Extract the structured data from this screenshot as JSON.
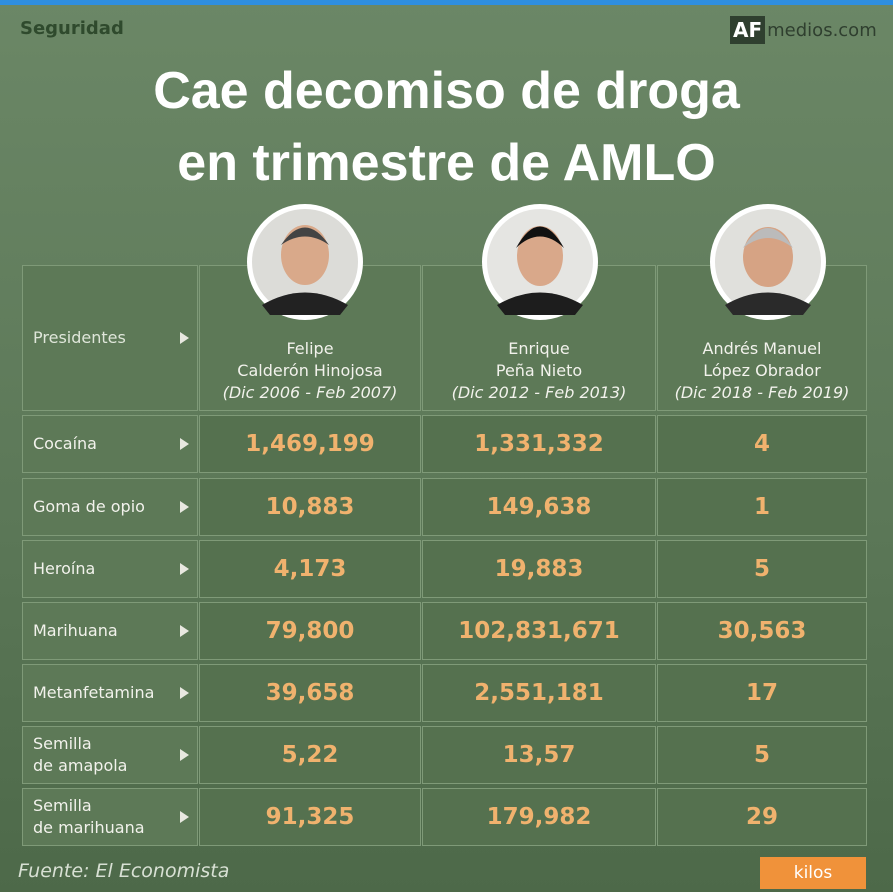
{
  "header": {
    "section": "Seguridad",
    "logo": {
      "mark": "AF",
      "text": "medios.com"
    }
  },
  "title": [
    "Cae decomiso de droga",
    "en trimestre de AMLO"
  ],
  "table": {
    "corner": "Presidentes",
    "columns": [
      {
        "name": [
          "Felipe",
          "Calderón Hinojosa"
        ],
        "period": "(Dic 2006 - Feb 2007)"
      },
      {
        "name": [
          "Enrique",
          "Peña Nieto"
        ],
        "period": "(Dic 2012 - Feb 2013)"
      },
      {
        "name": [
          "Andrés Manuel",
          "López Obrador"
        ],
        "period": "(Dic 2018 - Feb 2019)"
      }
    ],
    "rows": [
      {
        "label": [
          "Cocaína"
        ],
        "cells": [
          "1,469,199",
          "1,331,332",
          "4"
        ]
      },
      {
        "label": [
          "Goma de opio"
        ],
        "cells": [
          "10,883",
          "149,638",
          "1"
        ]
      },
      {
        "label": [
          "Heroína"
        ],
        "cells": [
          "4,173",
          "19,883",
          "5"
        ]
      },
      {
        "label": [
          "Marihuana"
        ],
        "cells": [
          "79,800",
          "102,831,671",
          "30,563"
        ]
      },
      {
        "label": [
          "Metanfetamina"
        ],
        "cells": [
          "39,658",
          "2,551,181",
          "17"
        ]
      },
      {
        "label": [
          "Semilla",
          "de amapola"
        ],
        "cells": [
          "5,22",
          "13,57",
          "5"
        ]
      },
      {
        "label": [
          "Semilla",
          "de marihuana"
        ],
        "cells": [
          "91,325",
          "179,982",
          "29"
        ]
      }
    ]
  },
  "footer": {
    "source": "Fuente: El Economista",
    "unit": "kilos"
  }
}
